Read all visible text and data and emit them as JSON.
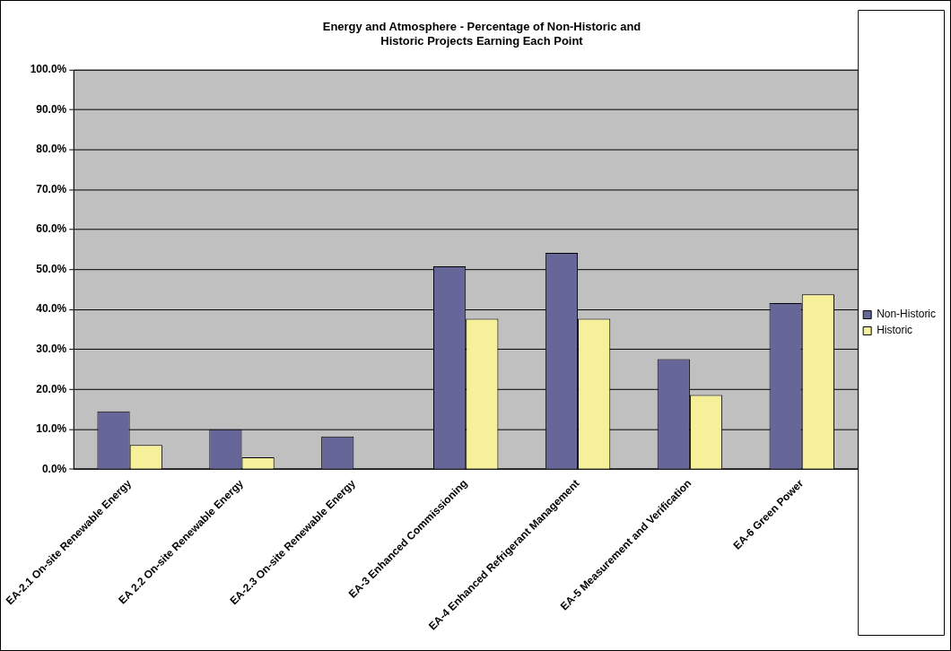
{
  "chart_data": {
    "type": "bar",
    "title": [
      "Energy and Atmosphere - Percentage of Non-Historic and",
      "Historic Projects Earning Each Point"
    ],
    "categories": [
      "EA-2.1 On-site Renewable Energy",
      "EA 2.2 On-site Renewable Energy",
      "EA-2.3 On-site Renewable Energy",
      "EA-3 Enhanced Commissioning",
      "EA-4 Enhanced Refrigerant Management",
      "EA-5 Measurement and Verification",
      "EA-6 Green Power"
    ],
    "series": [
      {
        "name": "Non-Historic",
        "color": "#666699",
        "values": [
          14.5,
          10.0,
          8.2,
          50.8,
          54.2,
          27.6,
          41.6
        ]
      },
      {
        "name": "Historic",
        "color": "#f5f099",
        "values": [
          6.1,
          3.0,
          0,
          37.7,
          37.7,
          18.6,
          43.8
        ]
      }
    ],
    "ylim": [
      0,
      100
    ],
    "yticks": [
      {
        "value": 0,
        "label": "0.0%"
      },
      {
        "value": 10,
        "label": "10.0%"
      },
      {
        "value": 20,
        "label": "20.0%"
      },
      {
        "value": 30,
        "label": "30.0%"
      },
      {
        "value": 40,
        "label": "40.0%"
      },
      {
        "value": 50,
        "label": "50.0%"
      },
      {
        "value": 60,
        "label": "60.0%"
      },
      {
        "value": 70,
        "label": "70.0%"
      },
      {
        "value": 80,
        "label": "80.0%"
      },
      {
        "value": 90,
        "label": "90.0%"
      },
      {
        "value": 100,
        "label": "100.0%"
      }
    ],
    "grid": "y",
    "legend": "right"
  }
}
